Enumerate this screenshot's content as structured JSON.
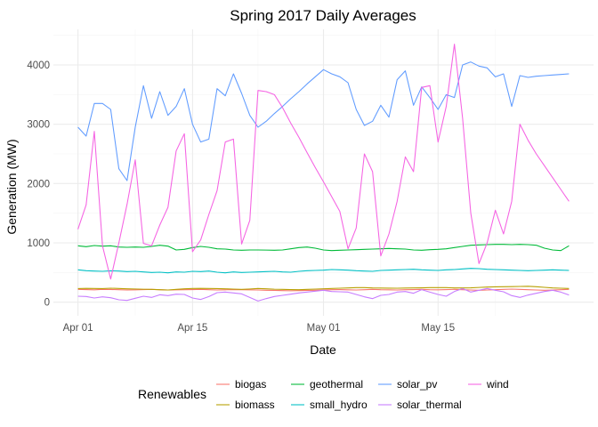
{
  "chart_data": {
    "type": "line",
    "title": "Spring 2017 Daily Averages",
    "xlabel": "Date",
    "ylabel": "Generation (MW)",
    "x_start": "2017-04-01",
    "x_end": "2017-05-31",
    "xlim": [
      "2017-03-29",
      "2017-06-03"
    ],
    "ylim": [
      -230,
      4600
    ],
    "x_ticks": [
      {
        "date": "2017-04-01",
        "label": "Apr 01"
      },
      {
        "date": "2017-04-15",
        "label": "Apr 15"
      },
      {
        "date": "2017-05-01",
        "label": "May 01"
      },
      {
        "date": "2017-05-15",
        "label": "May 15"
      }
    ],
    "y_ticks": [
      0,
      1000,
      2000,
      3000,
      4000
    ],
    "grid": true,
    "legend": {
      "title": "Renewables",
      "position": "bottom"
    },
    "series": [
      {
        "name": "biogas",
        "color": "#F8766D",
        "values": [
          215,
          212,
          208,
          215,
          213,
          210,
          205,
          208,
          212,
          215,
          210,
          205,
          208,
          210,
          212,
          215,
          210,
          205,
          208,
          212,
          210,
          208,
          205,
          200,
          198,
          195,
          192,
          195,
          198,
          200,
          205,
          210,
          212,
          208,
          205,
          210,
          215,
          210,
          208,
          205,
          210,
          212,
          215,
          210,
          208,
          212,
          215,
          210,
          205,
          200,
          205,
          210,
          215,
          220,
          215,
          210,
          205,
          200,
          205,
          210,
          215
        ]
      },
      {
        "name": "biomass",
        "color": "#B79F00",
        "values": [
          228,
          232,
          230,
          228,
          235,
          230,
          225,
          222,
          218,
          215,
          210,
          205,
          215,
          225,
          230,
          232,
          230,
          228,
          225,
          220,
          215,
          222,
          230,
          225,
          218,
          215,
          212,
          210,
          215,
          220,
          225,
          230,
          235,
          240,
          245,
          245,
          240,
          238,
          236,
          235,
          238,
          240,
          242,
          245,
          245,
          245,
          240,
          240,
          242,
          248,
          255,
          258,
          260,
          262,
          265,
          268,
          260,
          250,
          240,
          235,
          230
        ]
      },
      {
        "name": "geothermal",
        "color": "#00BA38",
        "values": [
          950,
          935,
          955,
          945,
          950,
          930,
          925,
          930,
          925,
          940,
          960,
          945,
          880,
          890,
          920,
          940,
          925,
          900,
          895,
          880,
          875,
          880,
          880,
          878,
          875,
          880,
          900,
          920,
          930,
          910,
          880,
          870,
          875,
          880,
          885,
          890,
          895,
          900,
          905,
          900,
          895,
          880,
          875,
          885,
          890,
          900,
          920,
          940,
          960,
          965,
          970,
          975,
          975,
          970,
          975,
          970,
          960,
          910,
          880,
          870,
          950
        ]
      },
      {
        "name": "small_hydro",
        "color": "#00BFC4",
        "values": [
          545,
          530,
          525,
          520,
          528,
          525,
          515,
          520,
          510,
          500,
          505,
          495,
          510,
          505,
          520,
          515,
          525,
          505,
          495,
          510,
          500,
          505,
          510,
          515,
          520,
          510,
          505,
          520,
          530,
          535,
          540,
          550,
          545,
          540,
          530,
          525,
          520,
          535,
          540,
          545,
          550,
          555,
          545,
          540,
          535,
          545,
          550,
          560,
          570,
          565,
          555,
          550,
          545,
          540,
          535,
          530,
          535,
          540,
          545,
          540,
          535
        ]
      },
      {
        "name": "solar_pv",
        "color": "#619CFF",
        "values": [
          2950,
          2800,
          3350,
          3350,
          3250,
          2250,
          2050,
          2950,
          3650,
          3100,
          3550,
          3150,
          3300,
          3600,
          3000,
          2700,
          2750,
          3600,
          3480,
          3850,
          3520,
          3150,
          2950,
          3050,
          3180,
          3300,
          3430,
          3550,
          3680,
          3800,
          3920,
          3850,
          3800,
          3700,
          3250,
          2980,
          3050,
          3320,
          3120,
          3750,
          3900,
          3320,
          3630,
          3450,
          3250,
          3500,
          3450,
          4000,
          4050,
          3980,
          3950,
          3800,
          3850,
          3300,
          3820,
          3790,
          3810,
          3820,
          3830,
          3840,
          3850
        ]
      },
      {
        "name": "solar_thermal",
        "color": "#C77CFF",
        "values": [
          100,
          95,
          70,
          90,
          75,
          40,
          30,
          65,
          100,
          80,
          125,
          110,
          135,
          130,
          70,
          45,
          95,
          160,
          170,
          155,
          140,
          80,
          20,
          60,
          95,
          115,
          135,
          155,
          170,
          185,
          200,
          180,
          175,
          170,
          130,
          90,
          60,
          115,
          130,
          170,
          180,
          150,
          210,
          170,
          130,
          100,
          180,
          230,
          170,
          200,
          230,
          200,
          175,
          110,
          80,
          120,
          150,
          180,
          200,
          170,
          120
        ]
      },
      {
        "name": "wind",
        "color": "#F564E3",
        "values": [
          1230,
          1640,
          2880,
          950,
          390,
          1000,
          1650,
          2400,
          990,
          950,
          1300,
          1600,
          2550,
          2840,
          850,
          1050,
          1480,
          1880,
          2700,
          2750,
          980,
          1380,
          3570,
          3550,
          3500,
          3280,
          3020,
          2780,
          2520,
          2270,
          2030,
          1780,
          1530,
          900,
          1250,
          2500,
          2200,
          780,
          1150,
          1700,
          2450,
          2200,
          3620,
          3650,
          2700,
          3300,
          4350,
          3100,
          1500,
          650,
          1000,
          1550,
          1150,
          1700,
          3000,
          2730,
          2500,
          2300,
          2100,
          1900,
          1700
        ]
      }
    ]
  }
}
